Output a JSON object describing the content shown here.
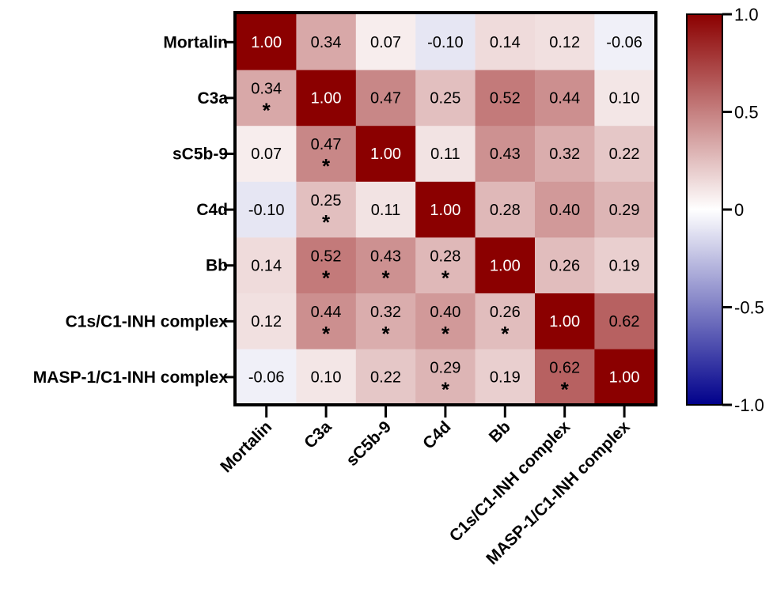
{
  "chart_data": {
    "type": "heatmap",
    "title": "",
    "variables": [
      "Mortalin",
      "C3a",
      "sC5b-9",
      "C4d",
      "Bb",
      "C1s/C1-INH complex",
      "MASP-1/C1-INH complex"
    ],
    "matrix": [
      [
        1.0,
        0.34,
        0.07,
        -0.1,
        0.14,
        0.12,
        -0.06
      ],
      [
        0.34,
        1.0,
        0.47,
        0.25,
        0.52,
        0.44,
        0.1
      ],
      [
        0.07,
        0.47,
        1.0,
        0.11,
        0.43,
        0.32,
        0.22
      ],
      [
        -0.1,
        0.25,
        0.11,
        1.0,
        0.28,
        0.4,
        0.29
      ],
      [
        0.14,
        0.52,
        0.43,
        0.28,
        1.0,
        0.26,
        0.19
      ],
      [
        0.12,
        0.44,
        0.32,
        0.4,
        0.26,
        1.0,
        0.62
      ],
      [
        -0.06,
        0.1,
        0.22,
        0.29,
        0.19,
        0.62,
        1.0
      ]
    ],
    "matrix_labels": [
      [
        "1.00",
        "0.34",
        "0.07",
        "-0.10",
        "0.14",
        "0.12",
        "-0.06"
      ],
      [
        "0.34",
        "1.00",
        "0.47",
        "0.25",
        "0.52",
        "0.44",
        "0.10"
      ],
      [
        "0.07",
        "0.47",
        "1.00",
        "0.11",
        "0.43",
        "0.32",
        "0.22"
      ],
      [
        "-0.10",
        "0.25",
        "0.11",
        "1.00",
        "0.28",
        "0.40",
        "0.29"
      ],
      [
        "0.14",
        "0.52",
        "0.43",
        "0.28",
        "1.00",
        "0.26",
        "0.19"
      ],
      [
        "0.12",
        "0.44",
        "0.32",
        "0.40",
        "0.26",
        "1.00",
        "0.62"
      ],
      [
        "-0.06",
        "0.10",
        "0.22",
        "0.29",
        "0.19",
        "0.62",
        "1.00"
      ]
    ],
    "significant": [
      [
        false,
        false,
        false,
        false,
        false,
        false,
        false
      ],
      [
        true,
        false,
        false,
        false,
        false,
        false,
        false
      ],
      [
        false,
        true,
        false,
        false,
        false,
        false,
        false
      ],
      [
        false,
        true,
        false,
        false,
        false,
        false,
        false
      ],
      [
        false,
        true,
        true,
        true,
        false,
        false,
        false
      ],
      [
        false,
        true,
        true,
        true,
        true,
        false,
        false
      ],
      [
        false,
        false,
        false,
        true,
        false,
        true,
        false
      ]
    ],
    "significance_marker": "*",
    "colorbar": {
      "range": [
        -1.0,
        1.0
      ],
      "ticks": [
        1.0,
        0.5,
        0,
        -0.5,
        -1.0
      ],
      "tick_labels": [
        "1.0",
        "0.5",
        "0",
        "-0.5",
        "-1.0"
      ],
      "colors": {
        "high": "#8b0000",
        "mid": "#ffffff",
        "low": "#00008b"
      }
    }
  }
}
